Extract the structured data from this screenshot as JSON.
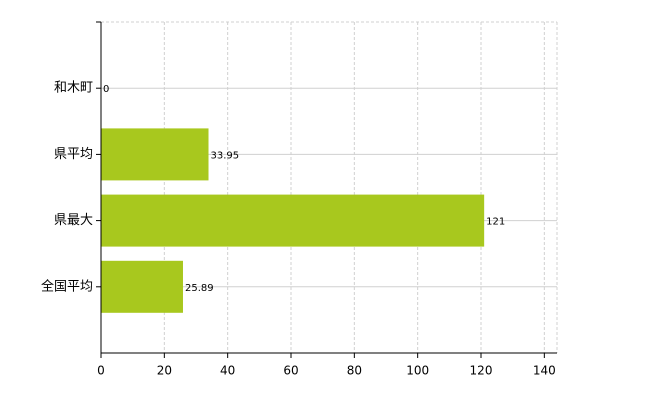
{
  "chart_data": {
    "type": "hbar",
    "categories": [
      "和木町",
      "県平均",
      "県最大",
      "全国平均"
    ],
    "values": [
      0,
      33.95,
      121,
      25.89
    ],
    "color": "#a8c81e",
    "xlim": [
      0,
      144
    ],
    "xticks": [
      0,
      20,
      40,
      60,
      80,
      100,
      120,
      140
    ],
    "grid": true
  }
}
